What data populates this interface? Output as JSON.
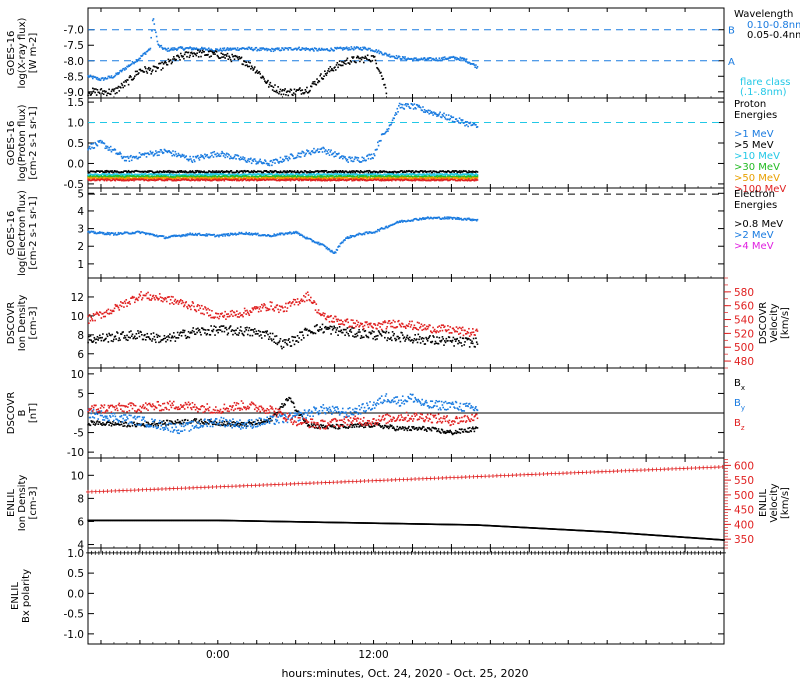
{
  "xaxis": {
    "title": "hours:minutes, Oct. 24, 2020 - Oct. 25, 2020",
    "range_hours": [
      -10,
      39
    ],
    "ticks": [
      {
        "hour": 0,
        "label": "0:00"
      },
      {
        "hour": 12,
        "label": "12:00"
      }
    ]
  },
  "colors": {
    "black": "#000000",
    "blue": "#1a7be0",
    "cyan": "#22c8e6",
    "green": "#22bb22",
    "orange": "#e8a000",
    "red": "#e02020",
    "magenta": "#e020e0"
  },
  "chart_data": [
    {
      "id": "xray",
      "type": "scatter",
      "ylabel": [
        "GOES-16",
        "log(X-ray flux)",
        "[W m-2]"
      ],
      "ylim": [
        -9.2,
        -6.3
      ],
      "yticks": [
        {
          "v": -7.0,
          "label": "-7.0"
        },
        {
          "v": -7.5,
          "label": "-7.5"
        },
        {
          "v": -8.0,
          "label": "-8.0"
        },
        {
          "v": -8.5,
          "label": "-8.5"
        },
        {
          "v": -9.0,
          "label": "-9.0"
        }
      ],
      "hlines": [
        {
          "v": -7.0,
          "color": "blue",
          "style": "dash"
        },
        {
          "v": -8.0,
          "color": "blue",
          "style": "dash"
        }
      ],
      "hline_labels": [
        {
          "v": -7.0,
          "text": "B",
          "color": "blue"
        },
        {
          "v": -8.0,
          "text": "A",
          "color": "blue"
        }
      ],
      "legend_title": [
        "Wavelength"
      ],
      "legend": [
        {
          "text": "0.10-0.8nm",
          "color": "blue"
        },
        {
          "text": "0.05-0.4nm",
          "color": "black"
        }
      ],
      "legend_extra": [
        {
          "text": "flare class",
          "color": "cyan"
        },
        {
          "text": "(.1-.8nm)",
          "color": "cyan"
        }
      ],
      "series": [
        {
          "color": "blue",
          "spread": 0.05,
          "x": [
            -10,
            -9,
            -8,
            -7,
            -6,
            -5.2,
            -5,
            -4.6,
            -4,
            -3,
            -2,
            0,
            2,
            4,
            6,
            8,
            10,
            11,
            11.5,
            12,
            13,
            14,
            15,
            16,
            17,
            18,
            19,
            20
          ],
          "y": [
            -8.5,
            -8.6,
            -8.5,
            -8.2,
            -7.9,
            -7.6,
            -6.6,
            -7.5,
            -7.65,
            -7.6,
            -7.6,
            -7.65,
            -7.6,
            -7.65,
            -7.6,
            -7.65,
            -7.6,
            -7.6,
            -7.6,
            -7.65,
            -7.8,
            -7.9,
            -7.95,
            -7.95,
            -7.95,
            -7.9,
            -7.95,
            -8.2
          ]
        },
        {
          "color": "black",
          "spread": 0.12,
          "x": [
            -10,
            -8,
            -7,
            -6,
            -5,
            -4,
            -3,
            -2,
            0,
            2,
            3,
            4,
            5,
            6,
            7,
            8,
            9,
            10,
            11,
            12,
            12.5,
            13
          ],
          "y": [
            -9.0,
            -9.0,
            -8.7,
            -8.3,
            -8.3,
            -8.1,
            -7.9,
            -7.75,
            -7.8,
            -8.0,
            -8.3,
            -8.8,
            -9.0,
            -9.0,
            -8.9,
            -8.5,
            -8.2,
            -8.0,
            -7.95,
            -7.9,
            -8.3,
            -9.0
          ]
        }
      ]
    },
    {
      "id": "protons",
      "type": "scatter",
      "ylabel": [
        "GOES-16",
        "log(Proton flux)",
        "[cm-2 s-1 sr-1]"
      ],
      "ylim": [
        -0.6,
        1.6
      ],
      "yticks": [
        {
          "v": 1.5,
          "label": "1.5"
        },
        {
          "v": 1.0,
          "label": "1.0"
        },
        {
          "v": 0.5,
          "label": "0.5"
        },
        {
          "v": 0.0,
          "label": "0.0"
        },
        {
          "v": -0.5,
          "label": "-0.5"
        }
      ],
      "hlines": [
        {
          "v": 1.0,
          "color": "cyan",
          "style": "dash"
        }
      ],
      "legend_title": [
        "Proton",
        "Energies"
      ],
      "legend": [
        {
          "text": ">1 MeV",
          "color": "blue"
        },
        {
          "text": ">5 MeV",
          "color": "black"
        },
        {
          "text": ">10 MeV",
          "color": "cyan"
        },
        {
          "text": ">30 MeV",
          "color": "green"
        },
        {
          "text": ">50 MeV",
          "color": "orange"
        },
        {
          "text": ">100 MeV",
          "color": "red"
        }
      ],
      "series": [
        {
          "color": "blue",
          "spread": 0.07,
          "x": [
            -10,
            -9,
            -8,
            -7,
            -6,
            -4,
            -2,
            0,
            2,
            4,
            6,
            8,
            10,
            11,
            12,
            12.5,
            13,
            14,
            15,
            16,
            17,
            18,
            19,
            20
          ],
          "y": [
            0.4,
            0.5,
            0.3,
            0.1,
            0.2,
            0.3,
            0.1,
            0.25,
            0.1,
            0.0,
            0.2,
            0.35,
            0.1,
            0.1,
            0.2,
            0.6,
            0.8,
            1.4,
            1.4,
            1.3,
            1.2,
            1.1,
            1.0,
            0.9
          ]
        },
        {
          "color": "black",
          "spread": 0.025,
          "x": [
            -10,
            20
          ],
          "y": [
            -0.2,
            -0.2
          ]
        },
        {
          "color": "cyan",
          "spread": 0.02,
          "x": [
            -10,
            20
          ],
          "y": [
            -0.27,
            -0.27
          ]
        },
        {
          "color": "green",
          "spread": 0.02,
          "x": [
            -10,
            20
          ],
          "y": [
            -0.32,
            -0.32
          ]
        },
        {
          "color": "orange",
          "spread": 0.02,
          "x": [
            -10,
            20
          ],
          "y": [
            -0.36,
            -0.36
          ]
        },
        {
          "color": "red",
          "spread": 0.02,
          "x": [
            -10,
            20
          ],
          "y": [
            -0.4,
            -0.4
          ]
        }
      ]
    },
    {
      "id": "electrons",
      "type": "scatter",
      "ylabel": [
        "GOES-16",
        "log(Electron flux)",
        "[cm-2 s-1 sr-1]"
      ],
      "ylim": [
        0.2,
        5.3
      ],
      "yticks": [
        {
          "v": 5,
          "label": "5"
        },
        {
          "v": 4,
          "label": "4"
        },
        {
          "v": 3,
          "label": "3"
        },
        {
          "v": 2,
          "label": "2"
        },
        {
          "v": 1,
          "label": "1"
        }
      ],
      "hlines": [
        {
          "v": 4.95,
          "color": "black",
          "style": "dash"
        }
      ],
      "legend_title": [
        "Electron",
        "Energies"
      ],
      "legend": [
        {
          "text": ">0.8 MeV",
          "color": "black"
        },
        {
          "text": ">2 MeV",
          "color": "blue"
        },
        {
          "text": ">4 MeV",
          "color": "magenta"
        }
      ],
      "series": [
        {
          "color": "blue",
          "spread": 0.06,
          "x": [
            -10,
            -8,
            -6,
            -4,
            -2,
            0,
            2,
            4,
            6,
            7,
            8,
            9,
            9.5,
            10,
            11,
            12,
            13,
            14,
            15,
            16,
            17,
            18,
            19,
            20
          ],
          "y": [
            2.8,
            2.7,
            2.8,
            2.5,
            2.7,
            2.6,
            2.75,
            2.6,
            2.8,
            2.4,
            2.1,
            1.6,
            2.2,
            2.5,
            2.7,
            2.8,
            3.1,
            3.4,
            3.5,
            3.6,
            3.6,
            3.6,
            3.55,
            3.5
          ]
        }
      ]
    },
    {
      "id": "dscovr_density",
      "type": "scatter",
      "ylabel": [
        "DSCOVR",
        "Ion Density",
        "[cm-3]"
      ],
      "ylim": [
        4.5,
        14
      ],
      "yticks": [
        {
          "v": 12,
          "label": "12"
        },
        {
          "v": 10,
          "label": "10"
        },
        {
          "v": 8,
          "label": "8"
        },
        {
          "v": 6,
          "label": "6"
        }
      ],
      "ylabel_right": [
        "DSCOVR",
        "Velocity",
        "[km/s]"
      ],
      "y2lim": [
        470,
        600
      ],
      "y2ticks": [
        {
          "v": 580,
          "label": "580"
        },
        {
          "v": 560,
          "label": "560"
        },
        {
          "v": 540,
          "label": "540"
        },
        {
          "v": 520,
          "label": "520"
        },
        {
          "v": 500,
          "label": "500"
        },
        {
          "v": 480,
          "label": "480"
        }
      ],
      "series": [
        {
          "color": "black",
          "spread": 0.5,
          "x": [
            -10,
            -8,
            -6,
            -4,
            -2,
            0,
            2,
            4,
            5,
            6,
            7,
            8,
            10,
            12,
            14,
            16,
            18,
            20
          ],
          "y": [
            7.5,
            7.8,
            8.0,
            7.5,
            8.3,
            8.5,
            8.4,
            8.0,
            7.0,
            7.5,
            8.5,
            8.7,
            8.3,
            8.0,
            7.8,
            7.5,
            7.3,
            7.2
          ]
        },
        {
          "color": "red",
          "axis": "y2",
          "spread": 6,
          "x": [
            -10,
            -8,
            -6,
            -4,
            -2,
            0,
            2,
            4,
            5,
            6,
            7,
            8,
            10,
            12,
            14,
            16,
            18,
            20
          ],
          "y": [
            540,
            555,
            575,
            570,
            560,
            545,
            550,
            560,
            555,
            565,
            575,
            545,
            535,
            530,
            535,
            528,
            525,
            520
          ]
        }
      ]
    },
    {
      "id": "dscovr_b",
      "type": "scatter",
      "ylabel": [
        "DSCOVR",
        "B",
        "[nT]"
      ],
      "ylim": [
        -11.5,
        11.5
      ],
      "yticks": [
        {
          "v": 10,
          "label": "10"
        },
        {
          "v": 5,
          "label": "5"
        },
        {
          "v": 0,
          "label": "0"
        },
        {
          "v": -5,
          "label": "-5"
        },
        {
          "v": -10,
          "label": "-10"
        }
      ],
      "hlines": [
        {
          "v": 0,
          "color": "black",
          "style": "solid"
        }
      ],
      "legend": [
        {
          "text": "Bx",
          "color": "black"
        },
        {
          "text": "By",
          "color": "blue"
        },
        {
          "text": "Bz",
          "color": "red"
        }
      ],
      "series": [
        {
          "color": "black",
          "spread": 0.6,
          "x": [
            -10,
            -6,
            -2,
            2,
            4,
            5,
            5.5,
            6,
            7,
            8,
            10,
            12,
            14,
            16,
            18,
            20
          ],
          "y": [
            -2.5,
            -3,
            -2,
            -3,
            -2,
            2,
            4,
            1,
            -3,
            -3.5,
            -3.5,
            -3,
            -4,
            -4,
            -5,
            -4
          ]
        },
        {
          "color": "blue",
          "spread": 1.2,
          "x": [
            -10,
            -6,
            -3,
            0,
            2,
            4,
            6,
            8,
            10,
            12,
            13,
            14,
            15,
            16,
            18,
            20
          ],
          "y": [
            0,
            -2,
            -4,
            -2,
            -3,
            -2,
            -1,
            1,
            0,
            2,
            4,
            3,
            4,
            2,
            2,
            1
          ]
        },
        {
          "color": "red",
          "spread": 1.2,
          "x": [
            -10,
            -6,
            -3,
            0,
            2,
            4,
            6,
            8,
            10,
            12,
            14,
            16,
            18,
            20
          ],
          "y": [
            1,
            1.5,
            2,
            1,
            2,
            1,
            -2,
            -3,
            -2,
            -2,
            -1,
            -1,
            -2,
            -1
          ]
        }
      ]
    },
    {
      "id": "enlil_density",
      "type": "scatter",
      "ylabel": [
        "ENLIL",
        "Ion Density",
        "[cm-3]"
      ],
      "ylim": [
        3.7,
        11.5
      ],
      "yticks": [
        {
          "v": 10,
          "label": "10"
        },
        {
          "v": 8,
          "label": "8"
        },
        {
          "v": 6,
          "label": "6"
        },
        {
          "v": 4,
          "label": "4"
        }
      ],
      "ylabel_right": [
        "ENLIL",
        "Velocity",
        "[km/s]"
      ],
      "y2lim": [
        320,
        625
      ],
      "y2ticks": [
        {
          "v": 600,
          "label": "600"
        },
        {
          "v": 550,
          "label": "550"
        },
        {
          "v": 500,
          "label": "500"
        },
        {
          "v": 450,
          "label": "450"
        },
        {
          "v": 400,
          "label": "400"
        },
        {
          "v": 350,
          "label": "350"
        }
      ],
      "series": [
        {
          "color": "black",
          "spread": 0,
          "x": [
            -10,
            0,
            10,
            20,
            30,
            39
          ],
          "y": [
            6.1,
            6.1,
            5.9,
            5.7,
            5.1,
            4.4
          ]
        },
        {
          "color": "red",
          "axis": "y2",
          "spread": 0,
          "marker": "plus",
          "x": [
            -10,
            39
          ],
          "y": [
            510,
            595
          ]
        }
      ]
    },
    {
      "id": "enlil_polarity",
      "type": "scatter",
      "ylabel": [
        "ENLIL",
        "Bx polarity"
      ],
      "ylim": [
        -1.25,
        1.12
      ],
      "yticks": [
        {
          "v": 1.0,
          "label": "1.0"
        },
        {
          "v": 0.5,
          "label": "0.5"
        },
        {
          "v": 0.0,
          "label": "0.0"
        },
        {
          "v": -0.5,
          "label": "-0.5"
        },
        {
          "v": -1.0,
          "label": "-1.0"
        }
      ],
      "series": [
        {
          "color": "black",
          "spread": 0,
          "marker": "plus",
          "x": [
            -10,
            39
          ],
          "y": [
            1.0,
            1.0
          ]
        }
      ]
    }
  ]
}
